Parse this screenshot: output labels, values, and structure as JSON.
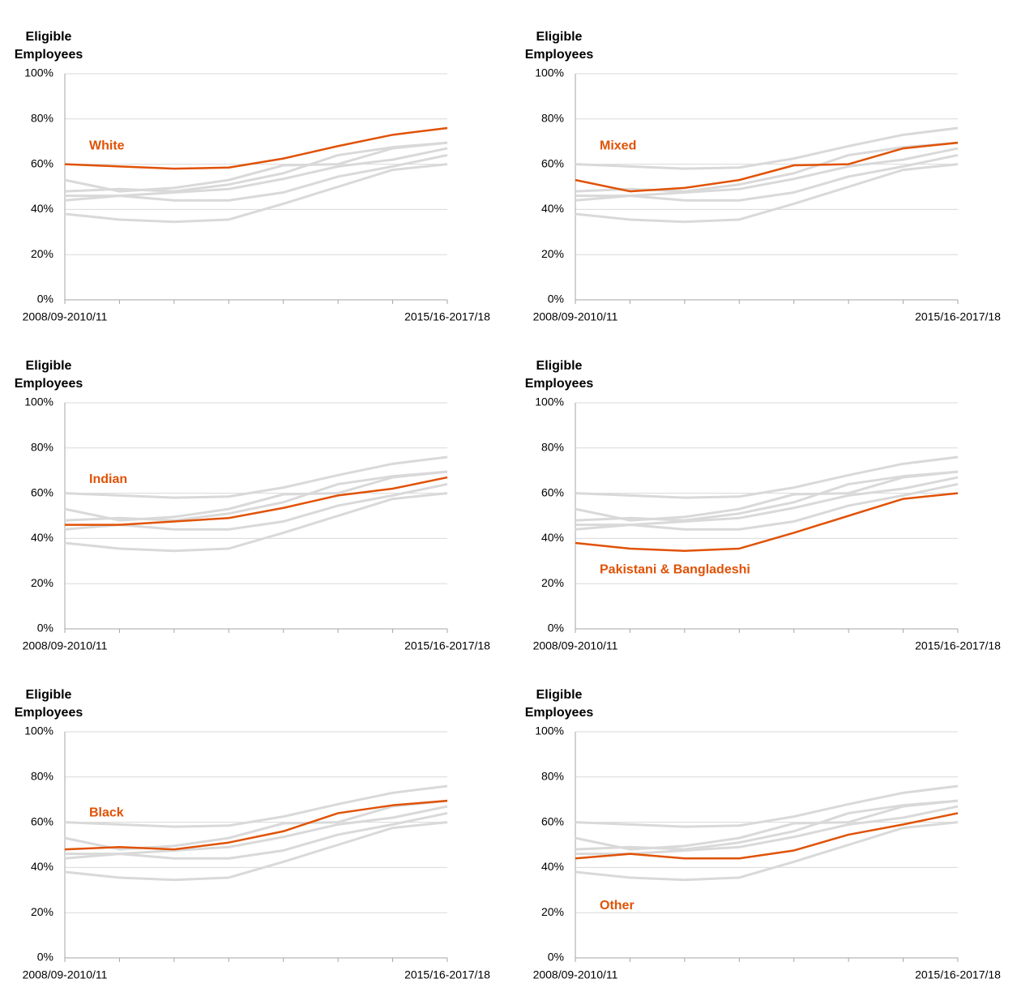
{
  "chart_data": {
    "type": "line",
    "y_label": "Eligible Employees",
    "categories": [
      "2008/09-2010/11",
      null,
      null,
      null,
      null,
      null,
      null,
      "2015/16-2017/18"
    ],
    "ylim": [
      0,
      100
    ],
    "yticks": [
      {
        "value": 0,
        "label": "0%"
      },
      {
        "value": 20,
        "label": "20%"
      },
      {
        "value": 40,
        "label": "40%"
      },
      {
        "value": 60,
        "label": "60%"
      },
      {
        "value": 80,
        "label": "80%"
      },
      {
        "value": 100,
        "label": "100%"
      }
    ],
    "grid": true,
    "series": [
      {
        "name": "White",
        "color": "#e05206",
        "values": [
          60,
          59,
          58,
          58.5,
          62.5,
          68,
          73,
          76
        ]
      },
      {
        "name": "Mixed",
        "color": "#e05206",
        "values": [
          53,
          48,
          49.5,
          53,
          59.5,
          60,
          67,
          69.5
        ]
      },
      {
        "name": "Indian",
        "color": "#e05206",
        "values": [
          46,
          46,
          47.5,
          49,
          53.5,
          59,
          62,
          67
        ]
      },
      {
        "name": "Pakistani & Bangladeshi",
        "color": "#e05206",
        "values": [
          38,
          35.5,
          34.5,
          35.5,
          42.5,
          50,
          57.5,
          60
        ]
      },
      {
        "name": "Black",
        "color": "#e05206",
        "values": [
          48,
          49,
          48,
          51,
          56,
          64,
          67.5,
          69.5
        ]
      },
      {
        "name": "Other",
        "color": "#e05206",
        "values": [
          44,
          46,
          44,
          44,
          47.5,
          54.5,
          59,
          64
        ]
      }
    ]
  }
}
